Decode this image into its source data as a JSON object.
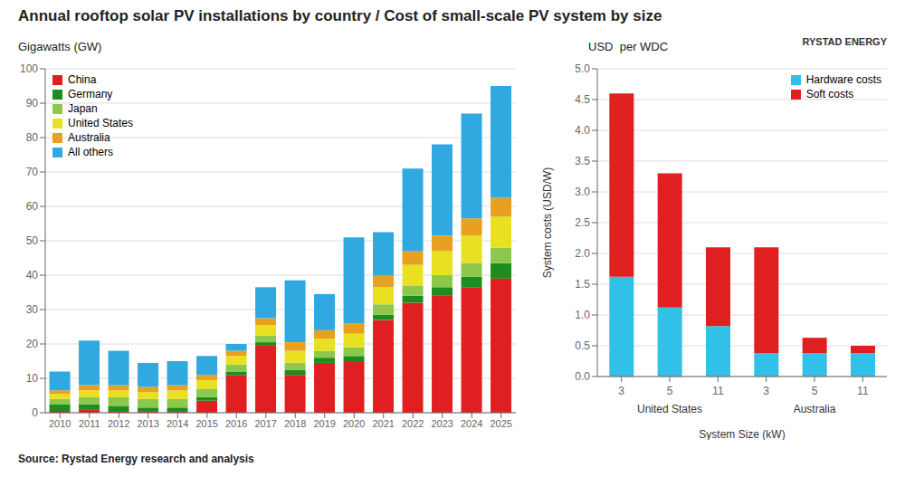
{
  "chart_data": [
    {
      "type": "bar",
      "stacked": true,
      "title": "Annual rooftop solar PV installations by country / Cost of small-scale PV system by size",
      "subtitle": "Gigawatts (GW)",
      "annotations": [
        "Source: Rystad Energy research and analysis",
        "RYSTAD ENERGY"
      ],
      "categories": [
        2010,
        2011,
        2012,
        2013,
        2014,
        2015,
        2016,
        2017,
        2018,
        2019,
        2020,
        2021,
        2022,
        2023,
        2024,
        2025
      ],
      "series": [
        {
          "name": "China",
          "color": "#e02020",
          "values": [
            0.5,
            1.0,
            0.5,
            0.5,
            0.5,
            3.5,
            11.0,
            19.5,
            11.0,
            14.5,
            15.0,
            27.0,
            32.0,
            34.0,
            36.5,
            39.0
          ]
        },
        {
          "name": "Germany",
          "color": "#1e8c1e",
          "values": [
            2.0,
            1.5,
            1.5,
            1.0,
            1.0,
            1.0,
            1.0,
            1.0,
            1.5,
            1.5,
            1.5,
            1.5,
            2.0,
            2.5,
            3.0,
            4.5
          ]
        },
        {
          "name": "Japan",
          "color": "#8cc84b",
          "values": [
            1.5,
            2.0,
            2.5,
            2.5,
            2.5,
            2.5,
            2.0,
            2.0,
            2.0,
            2.0,
            2.5,
            3.0,
            3.0,
            3.5,
            4.0,
            4.5
          ]
        },
        {
          "name": "United States",
          "color": "#e8e020",
          "values": [
            1.5,
            2.0,
            2.0,
            2.0,
            2.5,
            2.5,
            2.5,
            3.0,
            3.5,
            3.5,
            4.0,
            5.0,
            6.0,
            7.0,
            8.0,
            9.0
          ]
        },
        {
          "name": "Australia",
          "color": "#e8a020",
          "values": [
            1.0,
            1.5,
            1.5,
            1.5,
            1.5,
            1.5,
            1.5,
            2.0,
            2.5,
            2.5,
            3.0,
            3.5,
            4.0,
            4.5,
            5.0,
            5.5
          ]
        },
        {
          "name": "All others",
          "color": "#30a8e0",
          "values": [
            5.5,
            13.0,
            10.0,
            7.0,
            7.0,
            5.5,
            2.0,
            9.0,
            18.0,
            10.5,
            25.0,
            12.5,
            24.0,
            26.5,
            30.5,
            32.5
          ]
        }
      ],
      "ylim": [
        0,
        100
      ],
      "yticks": [
        0,
        10,
        20,
        30,
        40,
        50,
        60,
        70,
        80,
        90,
        100
      ],
      "grid": true,
      "legend": "upper left"
    },
    {
      "type": "bar",
      "stacked": true,
      "subtitle": "USD  per WDC",
      "ylabel": "System costs (USD/W)",
      "xlabel": "System Size (kW)",
      "annotations": [
        "United States",
        "Australia"
      ],
      "categories": [
        3,
        5,
        11,
        3,
        5,
        11
      ],
      "series": [
        {
          "name": "Hardware costs",
          "color": "#30c0e8",
          "values": [
            1.62,
            1.12,
            0.82,
            0.38,
            0.38,
            0.38
          ]
        },
        {
          "name": "Soft costs",
          "color": "#e02020",
          "values": [
            2.98,
            2.18,
            1.28,
            1.72,
            0.25,
            0.12
          ]
        }
      ],
      "ylim": [
        0,
        5.0
      ],
      "yticks": [
        {
          "value": 0.0,
          "label": "0.0"
        },
        0.5,
        {
          "value": 1.0,
          "label": "1.0"
        },
        1.5,
        {
          "value": 2.0,
          "label": "2.0"
        },
        2.5,
        {
          "value": 3.0,
          "label": "3.0"
        },
        3.5,
        {
          "value": 4.0,
          "label": "4.0"
        },
        4.5,
        {
          "value": 5.0,
          "label": "5.0"
        }
      ],
      "grid": true,
      "legend": "upper right"
    }
  ]
}
